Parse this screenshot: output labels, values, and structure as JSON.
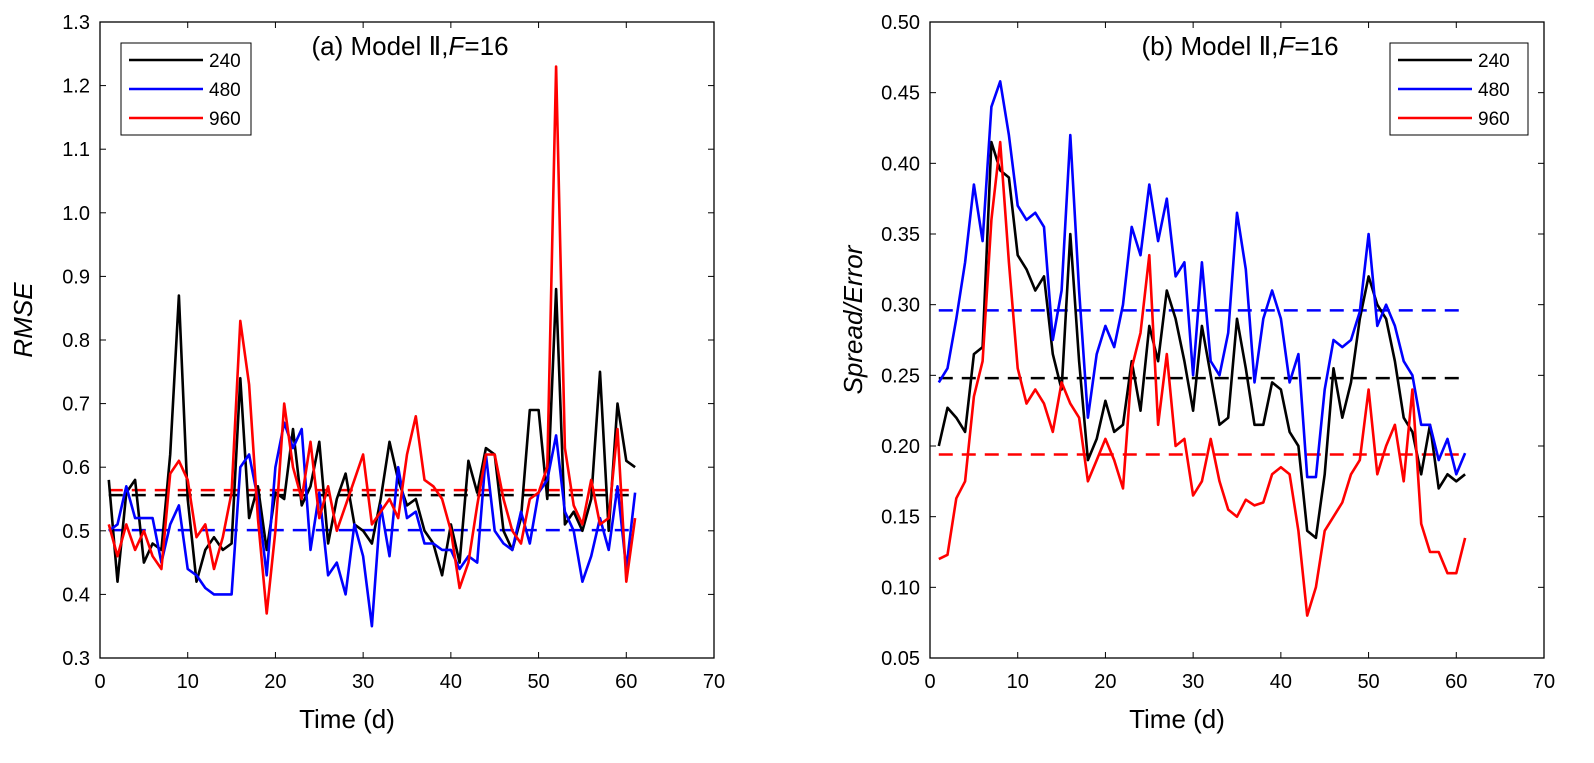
{
  "chart_data": [
    {
      "type": "line",
      "title": "(a) Model Ⅱ, F=16",
      "title_parts": {
        "prefix": "(a) Model Ⅱ,",
        "italic": "F",
        "suffix": "=16"
      },
      "xlabel": "Time (d)",
      "ylabel": "RMSE",
      "xlim": [
        0,
        70
      ],
      "ylim": [
        0.3,
        1.3
      ],
      "xticks": [
        0,
        10,
        20,
        30,
        40,
        50,
        60,
        70
      ],
      "yticks": [
        0.3,
        0.4,
        0.5,
        0.6,
        0.7,
        0.8,
        0.9,
        1.0,
        1.1,
        1.2,
        1.3
      ],
      "ytick_labels": [
        "0.3",
        "0.4",
        "0.5",
        "0.6",
        "0.7",
        "0.8",
        "0.9",
        "1.0",
        "1.1",
        "1.2",
        "1.3"
      ],
      "legend_position": "top-left",
      "series": [
        {
          "name": "240",
          "color": "#000000",
          "x": [
            1,
            2,
            3,
            4,
            5,
            6,
            7,
            8,
            9,
            10,
            11,
            12,
            13,
            14,
            15,
            16,
            17,
            18,
            19,
            20,
            21,
            22,
            23,
            24,
            25,
            26,
            27,
            28,
            29,
            30,
            31,
            32,
            33,
            34,
            35,
            36,
            37,
            38,
            39,
            40,
            41,
            42,
            43,
            44,
            45,
            46,
            47,
            48,
            49,
            50,
            51,
            52,
            53,
            54,
            55,
            56,
            57,
            58,
            59,
            60,
            61
          ],
          "values": [
            0.58,
            0.42,
            0.56,
            0.58,
            0.45,
            0.48,
            0.47,
            0.62,
            0.87,
            0.55,
            0.42,
            0.47,
            0.49,
            0.47,
            0.48,
            0.74,
            0.52,
            0.57,
            0.47,
            0.56,
            0.55,
            0.66,
            0.54,
            0.57,
            0.64,
            0.48,
            0.55,
            0.59,
            0.51,
            0.5,
            0.48,
            0.55,
            0.64,
            0.58,
            0.54,
            0.55,
            0.5,
            0.48,
            0.43,
            0.51,
            0.45,
            0.61,
            0.56,
            0.63,
            0.62,
            0.5,
            0.47,
            0.52,
            0.69,
            0.69,
            0.55,
            0.88,
            0.51,
            0.53,
            0.5,
            0.55,
            0.75,
            0.5,
            0.7,
            0.61,
            0.6
          ],
          "mean": 0.556
        },
        {
          "name": "480",
          "color": "#0000ff",
          "x": [
            1,
            2,
            3,
            4,
            5,
            6,
            7,
            8,
            9,
            10,
            11,
            12,
            13,
            14,
            15,
            16,
            17,
            18,
            19,
            20,
            21,
            22,
            23,
            24,
            25,
            26,
            27,
            28,
            29,
            30,
            31,
            32,
            33,
            34,
            35,
            36,
            37,
            38,
            39,
            40,
            41,
            42,
            43,
            44,
            45,
            46,
            47,
            48,
            49,
            50,
            51,
            52,
            53,
            54,
            55,
            56,
            57,
            58,
            59,
            60,
            61
          ],
          "values": [
            0.5,
            0.51,
            0.57,
            0.52,
            0.52,
            0.52,
            0.45,
            0.51,
            0.54,
            0.44,
            0.43,
            0.41,
            0.4,
            0.4,
            0.4,
            0.6,
            0.62,
            0.55,
            0.43,
            0.6,
            0.67,
            0.63,
            0.66,
            0.47,
            0.56,
            0.43,
            0.45,
            0.4,
            0.51,
            0.46,
            0.35,
            0.54,
            0.46,
            0.6,
            0.52,
            0.53,
            0.48,
            0.48,
            0.47,
            0.47,
            0.44,
            0.46,
            0.45,
            0.62,
            0.5,
            0.48,
            0.47,
            0.53,
            0.48,
            0.56,
            0.58,
            0.65,
            0.53,
            0.5,
            0.42,
            0.46,
            0.52,
            0.47,
            0.57,
            0.44,
            0.56
          ],
          "mean": 0.501
        },
        {
          "name": "960",
          "color": "#ff0000",
          "x": [
            1,
            2,
            3,
            4,
            5,
            6,
            7,
            8,
            9,
            10,
            11,
            12,
            13,
            14,
            15,
            16,
            17,
            18,
            19,
            20,
            21,
            22,
            23,
            24,
            25,
            26,
            27,
            28,
            29,
            30,
            31,
            32,
            33,
            34,
            35,
            36,
            37,
            38,
            39,
            40,
            41,
            42,
            43,
            44,
            45,
            46,
            47,
            48,
            49,
            50,
            51,
            52,
            53,
            54,
            55,
            56,
            57,
            58,
            59,
            60,
            61
          ],
          "values": [
            0.51,
            0.46,
            0.51,
            0.47,
            0.5,
            0.46,
            0.44,
            0.59,
            0.61,
            0.58,
            0.49,
            0.51,
            0.44,
            0.49,
            0.56,
            0.83,
            0.73,
            0.52,
            0.37,
            0.5,
            0.7,
            0.6,
            0.55,
            0.64,
            0.52,
            0.57,
            0.5,
            0.54,
            0.58,
            0.62,
            0.51,
            0.53,
            0.55,
            0.52,
            0.62,
            0.68,
            0.58,
            0.57,
            0.55,
            0.5,
            0.41,
            0.45,
            0.54,
            0.62,
            0.62,
            0.55,
            0.5,
            0.48,
            0.55,
            0.56,
            0.6,
            1.23,
            0.63,
            0.54,
            0.51,
            0.58,
            0.51,
            0.52,
            0.66,
            0.42,
            0.52
          ],
          "mean": 0.564
        }
      ]
    },
    {
      "type": "line",
      "title": "(b) Model Ⅱ, F=16",
      "title_parts": {
        "prefix": "(b) Model Ⅱ,",
        "italic": "F",
        "suffix": "=16"
      },
      "xlabel": "Time (d)",
      "ylabel": "Spread/Error",
      "xlim": [
        0,
        70
      ],
      "ylim": [
        0.05,
        0.5
      ],
      "xticks": [
        0,
        10,
        20,
        30,
        40,
        50,
        60,
        70
      ],
      "yticks": [
        0.05,
        0.1,
        0.15,
        0.2,
        0.25,
        0.3,
        0.35,
        0.4,
        0.45,
        0.5
      ],
      "ytick_labels": [
        "0.05",
        "0.10",
        "0.15",
        "0.20",
        "0.25",
        "0.30",
        "0.35",
        "0.40",
        "0.45",
        "0.50"
      ],
      "legend_position": "top-right",
      "series": [
        {
          "name": "240",
          "color": "#000000",
          "x": [
            1,
            2,
            3,
            4,
            5,
            6,
            7,
            8,
            9,
            10,
            11,
            12,
            13,
            14,
            15,
            16,
            17,
            18,
            19,
            20,
            21,
            22,
            23,
            24,
            25,
            26,
            27,
            28,
            29,
            30,
            31,
            32,
            33,
            34,
            35,
            36,
            37,
            38,
            39,
            40,
            41,
            42,
            43,
            44,
            45,
            46,
            47,
            48,
            49,
            50,
            51,
            52,
            53,
            54,
            55,
            56,
            57,
            58,
            59,
            60,
            61
          ],
          "values": [
            0.2,
            0.227,
            0.22,
            0.21,
            0.265,
            0.27,
            0.415,
            0.395,
            0.39,
            0.335,
            0.325,
            0.31,
            0.32,
            0.265,
            0.24,
            0.35,
            0.26,
            0.19,
            0.205,
            0.232,
            0.21,
            0.215,
            0.26,
            0.225,
            0.285,
            0.26,
            0.31,
            0.29,
            0.26,
            0.225,
            0.285,
            0.25,
            0.215,
            0.22,
            0.29,
            0.255,
            0.215,
            0.215,
            0.245,
            0.24,
            0.21,
            0.2,
            0.14,
            0.135,
            0.18,
            0.255,
            0.22,
            0.245,
            0.29,
            0.32,
            0.3,
            0.29,
            0.26,
            0.22,
            0.21,
            0.18,
            0.215,
            0.17,
            0.18,
            0.175,
            0.18
          ],
          "mean": 0.248
        },
        {
          "name": "480",
          "color": "#0000ff",
          "x": [
            1,
            2,
            3,
            4,
            5,
            6,
            7,
            8,
            9,
            10,
            11,
            12,
            13,
            14,
            15,
            16,
            17,
            18,
            19,
            20,
            21,
            22,
            23,
            24,
            25,
            26,
            27,
            28,
            29,
            30,
            31,
            32,
            33,
            34,
            35,
            36,
            37,
            38,
            39,
            40,
            41,
            42,
            43,
            44,
            45,
            46,
            47,
            48,
            49,
            50,
            51,
            52,
            53,
            54,
            55,
            56,
            57,
            58,
            59,
            60,
            61
          ],
          "values": [
            0.245,
            0.255,
            0.29,
            0.33,
            0.385,
            0.345,
            0.44,
            0.458,
            0.42,
            0.37,
            0.36,
            0.365,
            0.355,
            0.275,
            0.31,
            0.42,
            0.31,
            0.22,
            0.265,
            0.285,
            0.27,
            0.3,
            0.355,
            0.335,
            0.385,
            0.345,
            0.375,
            0.32,
            0.33,
            0.25,
            0.33,
            0.26,
            0.25,
            0.28,
            0.365,
            0.325,
            0.245,
            0.29,
            0.31,
            0.29,
            0.245,
            0.265,
            0.178,
            0.178,
            0.24,
            0.275,
            0.27,
            0.275,
            0.295,
            0.35,
            0.285,
            0.3,
            0.285,
            0.26,
            0.25,
            0.215,
            0.215,
            0.19,
            0.205,
            0.18,
            0.195
          ],
          "mean": 0.296
        },
        {
          "name": "960",
          "color": "#ff0000",
          "x": [
            1,
            2,
            3,
            4,
            5,
            6,
            7,
            8,
            9,
            10,
            11,
            12,
            13,
            14,
            15,
            16,
            17,
            18,
            19,
            20,
            21,
            22,
            23,
            24,
            25,
            26,
            27,
            28,
            29,
            30,
            31,
            32,
            33,
            34,
            35,
            36,
            37,
            38,
            39,
            40,
            41,
            42,
            43,
            44,
            45,
            46,
            47,
            48,
            49,
            50,
            51,
            52,
            53,
            54,
            55,
            56,
            57,
            58,
            59,
            60,
            61
          ],
          "values": [
            0.12,
            0.123,
            0.163,
            0.175,
            0.235,
            0.26,
            0.36,
            0.415,
            0.33,
            0.255,
            0.23,
            0.24,
            0.23,
            0.21,
            0.245,
            0.23,
            0.22,
            0.175,
            0.19,
            0.205,
            0.19,
            0.17,
            0.255,
            0.28,
            0.335,
            0.215,
            0.265,
            0.2,
            0.205,
            0.165,
            0.175,
            0.205,
            0.175,
            0.155,
            0.15,
            0.162,
            0.158,
            0.16,
            0.18,
            0.185,
            0.18,
            0.14,
            0.08,
            0.1,
            0.14,
            0.15,
            0.16,
            0.18,
            0.19,
            0.24,
            0.18,
            0.2,
            0.215,
            0.175,
            0.24,
            0.145,
            0.125,
            0.125,
            0.11,
            0.11,
            0.135
          ],
          "mean": 0.194
        }
      ]
    }
  ]
}
